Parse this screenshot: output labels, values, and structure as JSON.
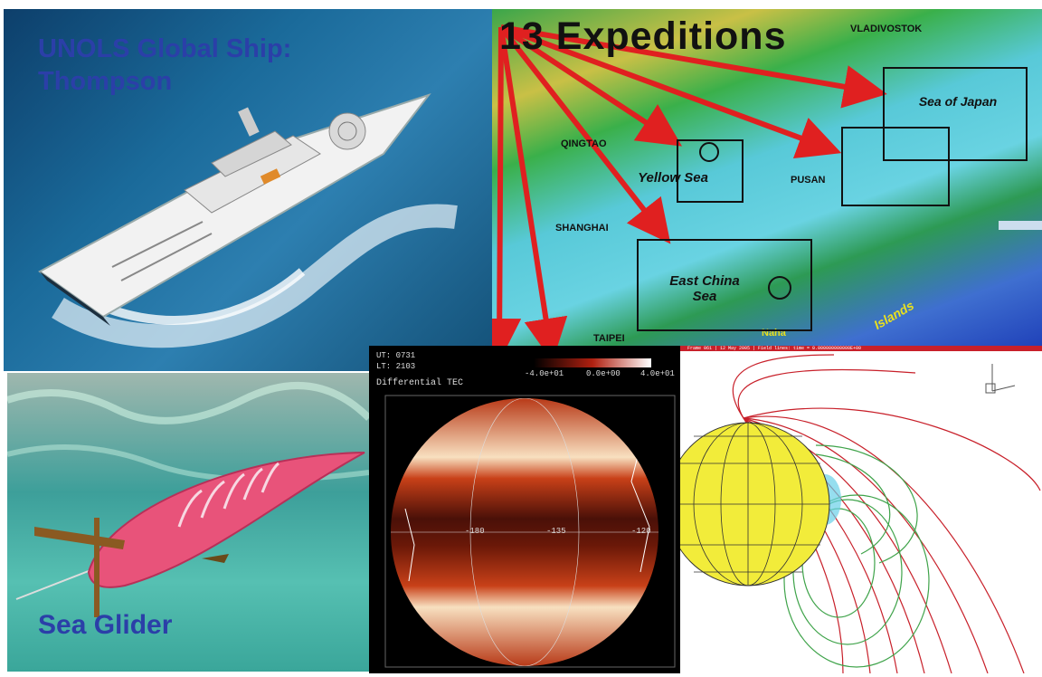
{
  "ship_panel": {
    "title": "UNOLS Global Ship:\nThompson"
  },
  "map_panel": {
    "headline": "13 Expeditions",
    "labels": {
      "vladivostok": "VLADIVOSTOK",
      "qingdao": "QINGTAO",
      "pusan": "PUSAN",
      "shanghai": "SHANGHAI",
      "taipei": "TAIPEI",
      "islands": "Islands",
      "naha": "Naha"
    },
    "seas": {
      "japan": "Sea of Japan",
      "yellow": "Yellow Sea",
      "east_china": "East China\nSea"
    }
  },
  "glider_panel": {
    "title": "Sea Glider"
  },
  "tec_panel": {
    "ut": "UT: 0731",
    "lt": "LT: 2103",
    "label": "Differential TEC",
    "scale_min": "-4.0e+01",
    "scale_mid": "0.0e+00",
    "scale_max": "4.0e+01",
    "lon_labels": [
      "-180",
      "-135",
      "-120"
    ]
  },
  "mag_panel": {
    "header": "Frame 061 | 12 May 2005 | Field lines: time = 0.000000000000E+00"
  },
  "colors": {
    "title_blue": "#2b3fa8",
    "arrow_red": "#e02020",
    "field_red": "#c8202a",
    "field_green": "#3fa34a",
    "globe_yellow": "#f2ec3a"
  }
}
